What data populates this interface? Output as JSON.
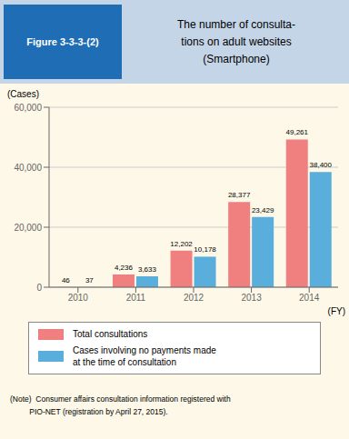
{
  "chart_data": {
    "type": "bar",
    "title": "The number of consulta-\ntions on adult websites\n(Smartphone)",
    "annotations": [
      "Figure 3-3-3-(2)",
      "(Note)  Consumer affairs consultation information registered with",
      "         PIO-NET (registration by April 27, 2015)."
    ],
    "categories": [
      "2010",
      "2011",
      "2012",
      "2013",
      "2014"
    ],
    "series": [
      {
        "name": "Total consultations",
        "color": "#f08080",
        "values": [
          46,
          4236,
          12202,
          28377,
          49261
        ],
        "value_labels": [
          "46",
          "4,236",
          "12,202",
          "28,377",
          "49,261"
        ]
      },
      {
        "name": "Cases involving no payments made\nat the time of consultation",
        "color": "#5aaedc",
        "values": [
          37,
          3633,
          10178,
          23429,
          38400
        ],
        "value_labels": [
          "37",
          "3,633",
          "10,178",
          "23,429",
          "38,400"
        ]
      }
    ],
    "ylim": [
      0,
      60000
    ],
    "yticks": [
      0,
      {
        "value": 20000,
        "label": "20,000"
      },
      {
        "value": 40000,
        "label": "40,000"
      },
      {
        "value": 60000,
        "label": "60,000"
      }
    ],
    "ylabel": "(Cases)",
    "xlabel": "(FY)",
    "grid": true,
    "legend": "bottom",
    "data_labels": true
  }
}
